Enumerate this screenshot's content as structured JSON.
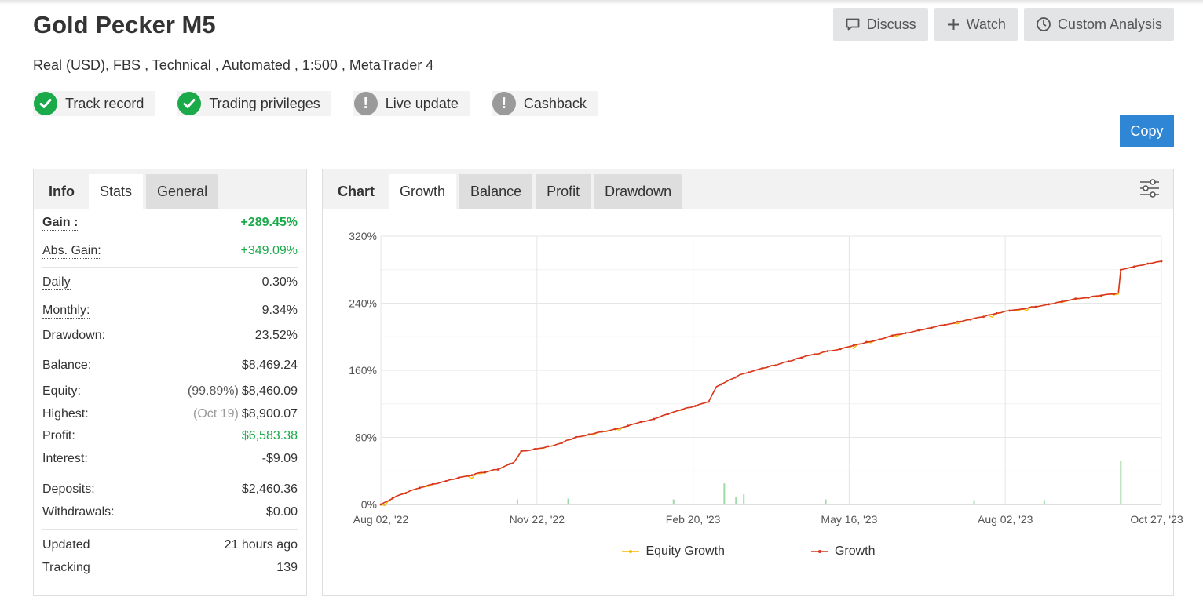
{
  "header": {
    "title": "Gold Pecker M5",
    "account_type": "Real (USD),",
    "broker": "FBS",
    "details": ", Technical , Automated , 1:500 , MetaTrader 4"
  },
  "actions": {
    "discuss": "Discuss",
    "watch": "Watch",
    "custom_analysis": "Custom Analysis",
    "copy": "Copy"
  },
  "badges": [
    {
      "label": "Track record",
      "status": "ok"
    },
    {
      "label": "Trading privileges",
      "status": "ok"
    },
    {
      "label": "Live update",
      "status": "warn"
    },
    {
      "label": "Cashback",
      "status": "warn"
    }
  ],
  "left_tabs": {
    "info": "Info",
    "stats": "Stats",
    "general": "General",
    "active": "Stats"
  },
  "stats": {
    "gain_label": "Gain :",
    "gain": "+289.45%",
    "abs_gain_label": "Abs. Gain:",
    "abs_gain": "+349.09%",
    "daily_label": "Daily",
    "daily": "0.30%",
    "monthly_label": "Monthly:",
    "monthly": "9.34%",
    "drawdown_label": "Drawdown:",
    "drawdown": "23.52%",
    "balance_label": "Balance:",
    "balance": "$8,469.24",
    "equity_label": "Equity:",
    "equity_pct": "(99.89%)",
    "equity": "$8,460.09",
    "highest_label": "Highest:",
    "highest_date": "(Oct 19)",
    "highest": "$8,900.07",
    "profit_label": "Profit:",
    "profit": "$6,583.38",
    "interest_label": "Interest:",
    "interest": "-$9.09",
    "deposits_label": "Deposits:",
    "deposits": "$2,460.36",
    "withdrawals_label": "Withdrawals:",
    "withdrawals": "$0.00",
    "updated_label": "Updated",
    "updated": "21 hours ago",
    "tracking_label": "Tracking",
    "tracking": "139"
  },
  "chart_tabs": {
    "chart": "Chart",
    "growth": "Growth",
    "balance": "Balance",
    "profit": "Profit",
    "drawdown": "Drawdown",
    "active": "Growth"
  },
  "colors": {
    "growth": "#d9361e",
    "equity": "#f5b800",
    "bars": "#9fd9a8",
    "positive": "#1aaa4a",
    "copy": "#2f86d4"
  },
  "chart_data": {
    "type": "line",
    "y_ticks": [
      "0%",
      "80%",
      "160%",
      "240%",
      "320%"
    ],
    "ylim": [
      0,
      320
    ],
    "x_ticks": [
      "Aug 02, '22",
      "Nov 22, '22",
      "Feb 20, '23",
      "May 16, '23",
      "Aug 02, '23",
      "Oct 27, '23"
    ],
    "grid": true,
    "legend_position": "bottom",
    "series": [
      {
        "name": "Equity Growth",
        "color": "#f5b800"
      },
      {
        "name": "Growth",
        "color": "#d9361e",
        "points": [
          [
            0,
            0
          ],
          [
            0.02,
            10
          ],
          [
            0.05,
            20
          ],
          [
            0.1,
            32
          ],
          [
            0.15,
            42
          ],
          [
            0.17,
            50
          ],
          [
            0.18,
            63
          ],
          [
            0.22,
            70
          ],
          [
            0.25,
            80
          ],
          [
            0.3,
            90
          ],
          [
            0.35,
            102
          ],
          [
            0.38,
            112
          ],
          [
            0.42,
            122
          ],
          [
            0.43,
            140
          ],
          [
            0.46,
            155
          ],
          [
            0.5,
            165
          ],
          [
            0.55,
            178
          ],
          [
            0.6,
            188
          ],
          [
            0.65,
            200
          ],
          [
            0.7,
            210
          ],
          [
            0.75,
            220
          ],
          [
            0.8,
            230
          ],
          [
            0.85,
            238
          ],
          [
            0.89,
            245
          ],
          [
            0.945,
            252
          ],
          [
            0.948,
            280
          ],
          [
            1,
            290
          ]
        ]
      },
      {
        "name": "volume",
        "bars": [
          [
            0.175,
            6
          ],
          [
            0.24,
            7
          ],
          [
            0.375,
            6
          ],
          [
            0.44,
            25
          ],
          [
            0.455,
            9
          ],
          [
            0.465,
            12
          ],
          [
            0.57,
            6
          ],
          [
            0.76,
            5
          ],
          [
            0.85,
            5
          ],
          [
            0.948,
            52
          ]
        ]
      }
    ]
  }
}
